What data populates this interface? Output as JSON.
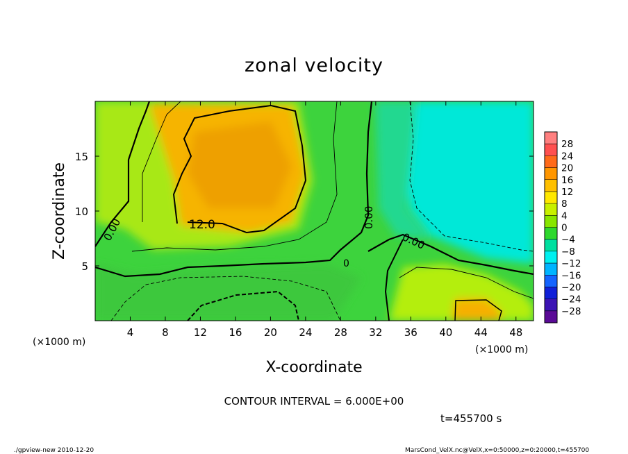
{
  "chart_data": {
    "type": "heatmap",
    "title": "zonal velocity",
    "xlabel": "X-coordinate",
    "ylabel": "Z-coordinate",
    "x_unit": "(×1000 m)",
    "y_unit": "(×1000 m)",
    "xlim": [
      0,
      50
    ],
    "ylim": [
      0,
      20
    ],
    "x_ticks": [
      4,
      8,
      12,
      16,
      20,
      24,
      28,
      32,
      36,
      40,
      44,
      48
    ],
    "y_ticks": [
      5,
      10,
      15
    ],
    "colorbar": {
      "labels": [
        "28",
        "24",
        "20",
        "16",
        "12",
        "8",
        "4",
        "0",
        "−4",
        "−8",
        "−12",
        "−16",
        "−20",
        "−24",
        "−28"
      ],
      "colors": [
        "#ff8080",
        "#ff5050",
        "#ff6a1a",
        "#ff9600",
        "#ffc000",
        "#ffe800",
        "#c8f000",
        "#88e600",
        "#2ed82e",
        "#00e0a0",
        "#00f0f0",
        "#00b4ff",
        "#1464ff",
        "#1020d8",
        "#3c14b4",
        "#5a0a96"
      ]
    },
    "contour_labels": [
      "0.00",
      "12.0",
      "0.00",
      "0.00",
      "0"
    ],
    "contour_interval_text": "CONTOUR INTERVAL = 6.000E+00",
    "time_text": "t=455700 s"
  },
  "footer": {
    "left": "./gpview-new  2010-12-20",
    "right": "MarsCond_VelX.nc@VelX,x=0:50000,z=0:20000,t=455700"
  }
}
